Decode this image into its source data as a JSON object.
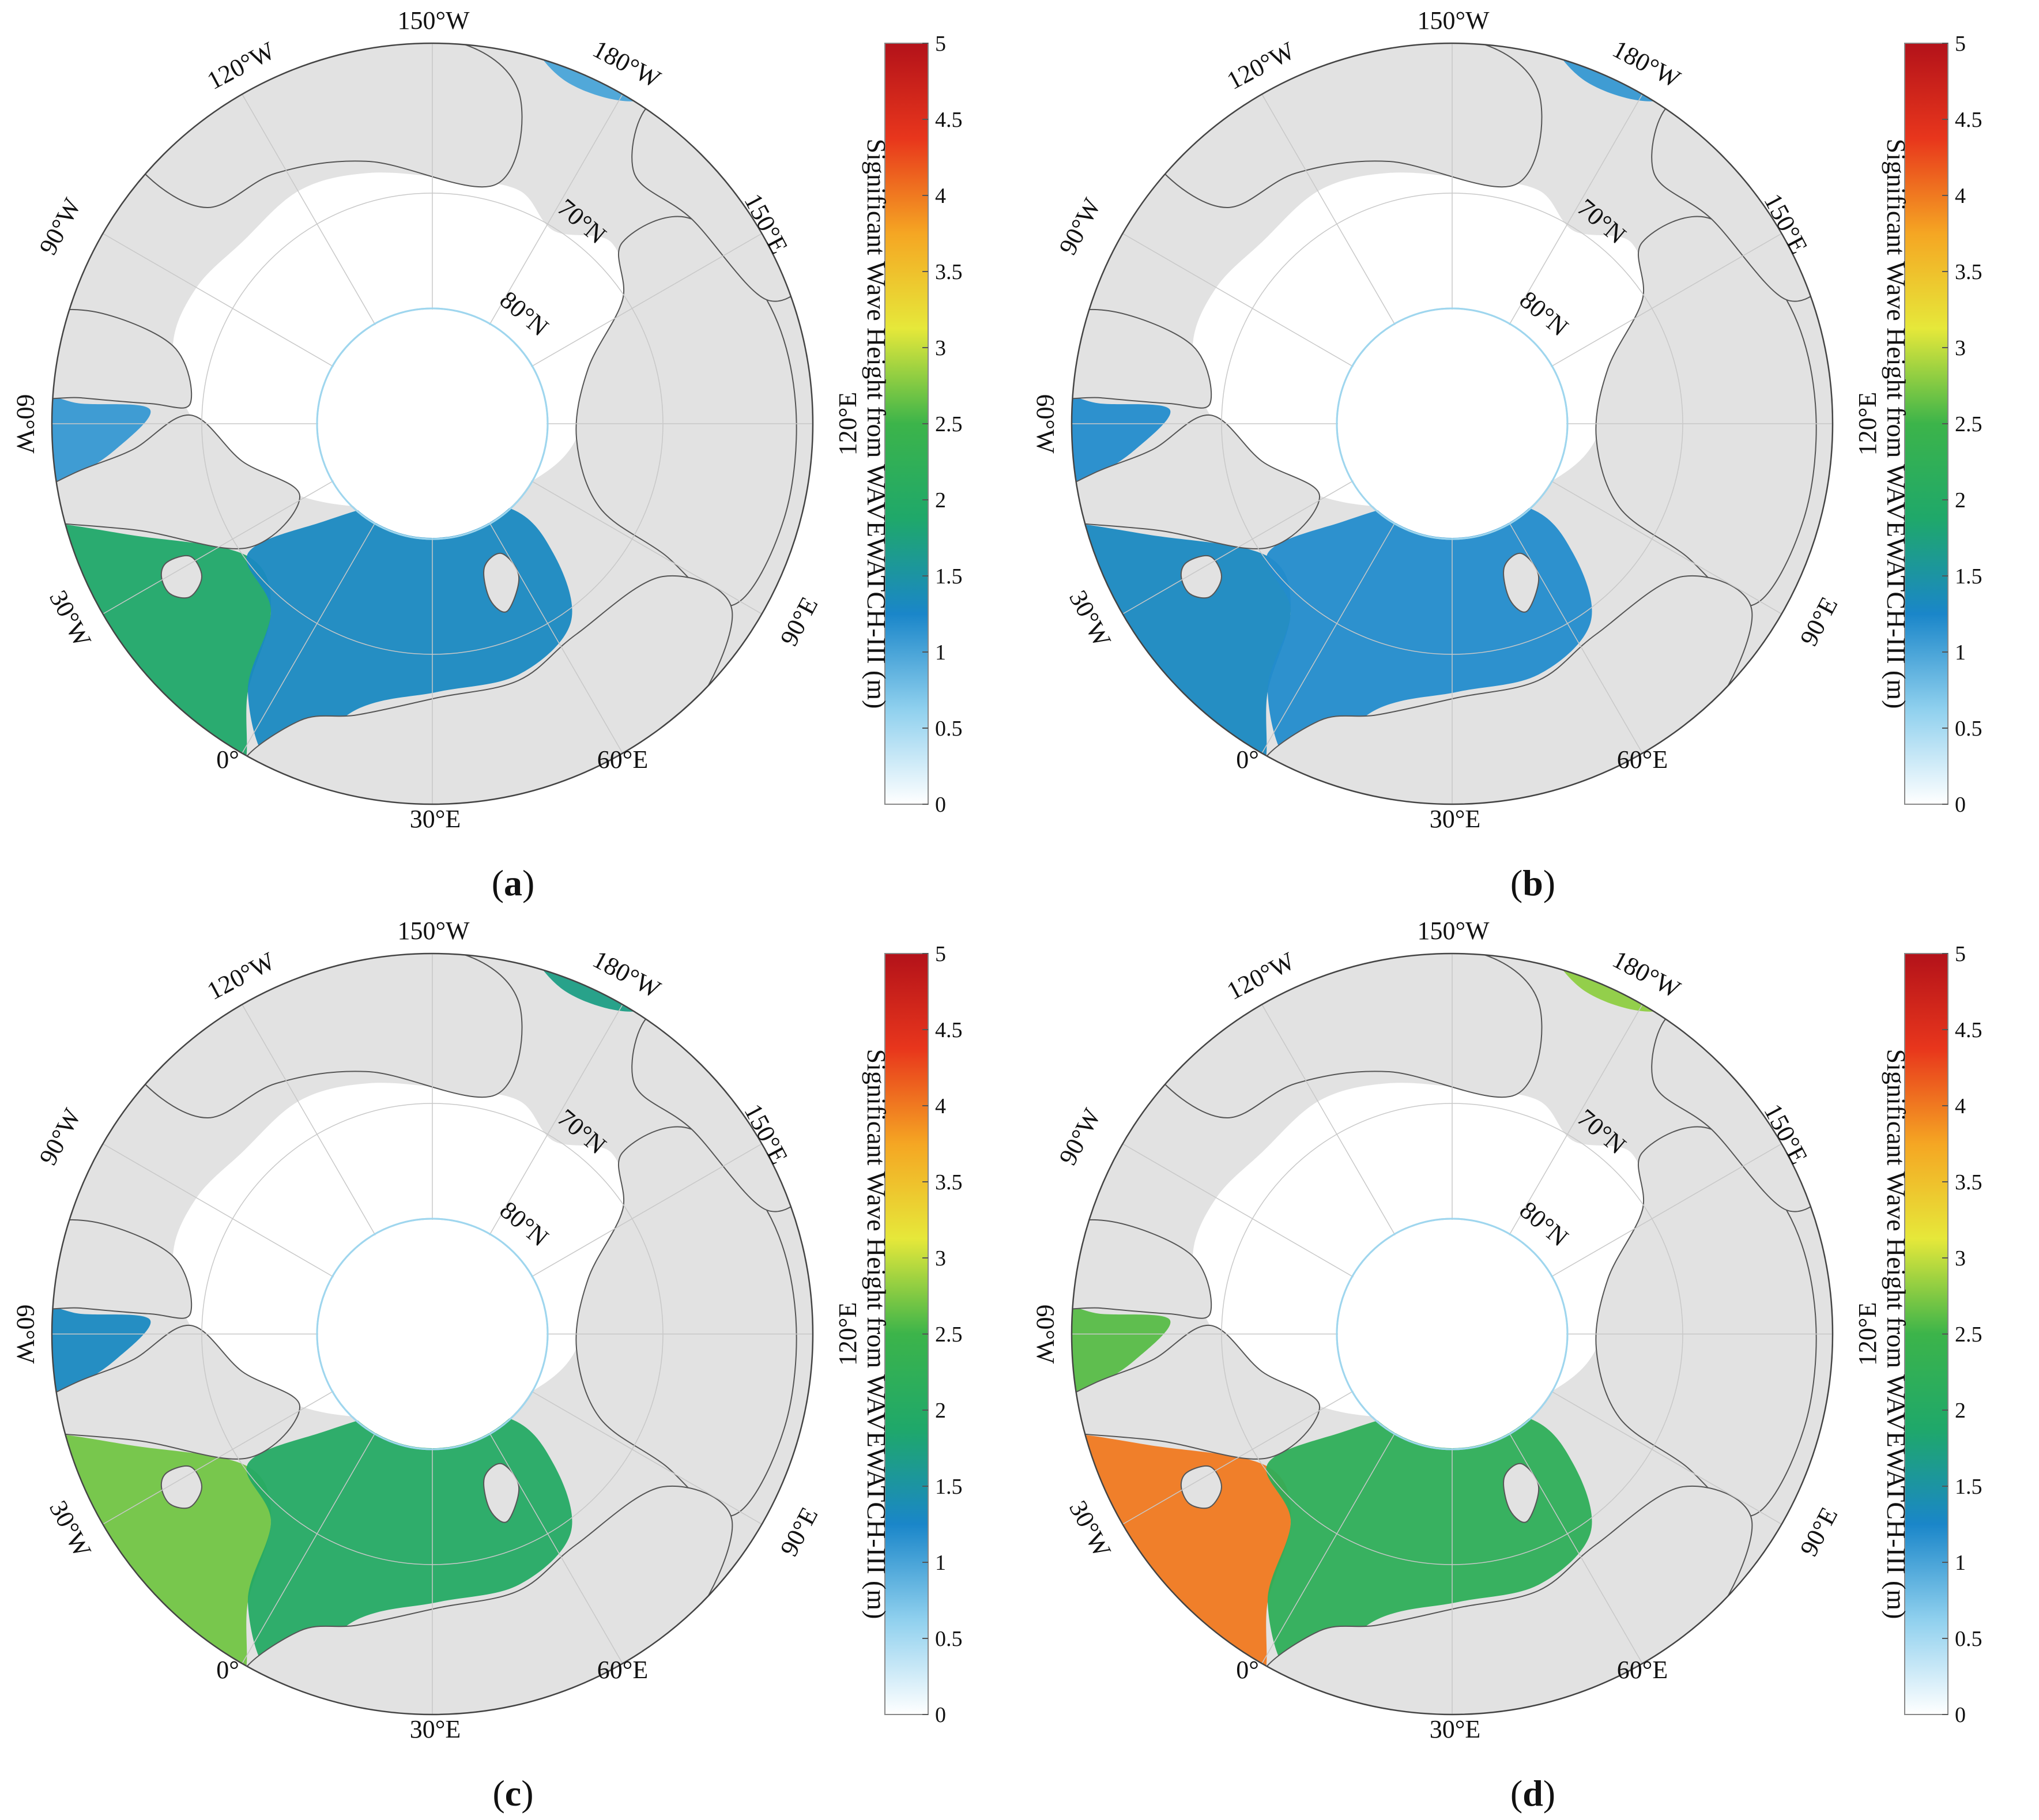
{
  "figure": {
    "colorbar": {
      "title": "Significant Wave Height from WAVEWATCH-III (m)",
      "ticks": [
        "0",
        "0.5",
        "1",
        "1.5",
        "2",
        "2.5",
        "3",
        "3.5",
        "4",
        "4.5",
        "5"
      ],
      "range": [
        0,
        5
      ],
      "colormap": [
        "#ffffff",
        "#8fd0ee",
        "#1a86c9",
        "#1fa86a",
        "#3cb44a",
        "#e6e83a",
        "#f5a623",
        "#e8361c",
        "#b3121a"
      ]
    },
    "map_labels": {
      "lon": [
        "150°W",
        "180°W",
        "120°W",
        "150°E",
        "90°W",
        "60°W",
        "120°E",
        "30°W",
        "90°E",
        "0°",
        "60°E",
        "30°E"
      ],
      "lat": [
        "70°N",
        "80°N"
      ]
    },
    "colors": {
      "land": "#e2e2e2",
      "coast": "#555555",
      "ice": "#ffffff",
      "grid": "#c8c8c8",
      "lat_circle": "#9fd6ee"
    }
  },
  "panels": [
    {
      "id": "a",
      "caption": "a",
      "wave_levels": {
        "greenland_sea": 1.9,
        "norwegian_barents": 1.3,
        "bering": 1.0,
        "baffin": 1.1
      }
    },
    {
      "id": "b",
      "caption": "b",
      "wave_levels": {
        "greenland_sea": 1.3,
        "norwegian_barents": 1.2,
        "bering": 1.1,
        "baffin": 1.2
      }
    },
    {
      "id": "c",
      "caption": "c",
      "wave_levels": {
        "greenland_sea": 2.7,
        "norwegian_barents": 2.0,
        "bering": 1.7,
        "baffin": 1.3
      }
    },
    {
      "id": "d",
      "caption": "d",
      "wave_levels": {
        "greenland_sea": 4.0,
        "norwegian_barents": 2.2,
        "bering": 2.8,
        "baffin": 2.6
      }
    }
  ]
}
